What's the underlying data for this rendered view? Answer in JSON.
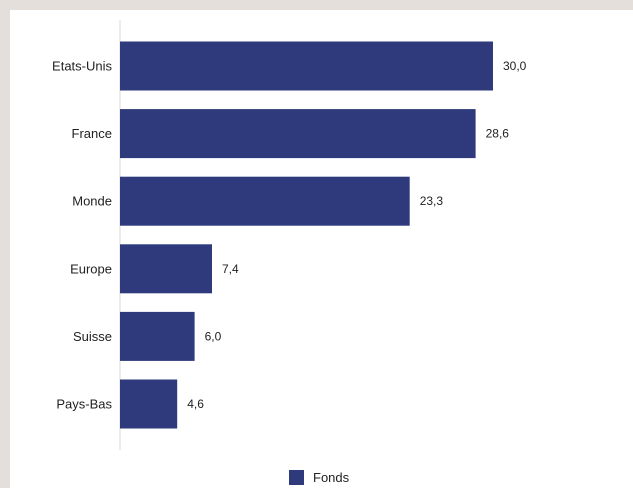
{
  "chart_data": {
    "type": "bar",
    "orientation": "horizontal",
    "categories": [
      "Etats-Unis",
      "France",
      "Monde",
      "Europe",
      "Suisse",
      "Pays-Bas"
    ],
    "values": [
      30.0,
      28.6,
      23.3,
      7.4,
      6.0,
      4.6
    ],
    "value_labels": [
      "30,0",
      "28,6",
      "23,3",
      "7,4",
      "6,0",
      "4,6"
    ],
    "series": [
      {
        "name": "Fonds",
        "color": "#2e3a7c"
      }
    ],
    "xlim": [
      0,
      30
    ],
    "grid": false,
    "legend_position": "bottom-center",
    "title": "",
    "xlabel": "",
    "ylabel": ""
  },
  "colors": {
    "background": "#e4dfda",
    "card": "#ffffff",
    "bar": "#2e3a7c",
    "axis": "#d9d9d9"
  }
}
